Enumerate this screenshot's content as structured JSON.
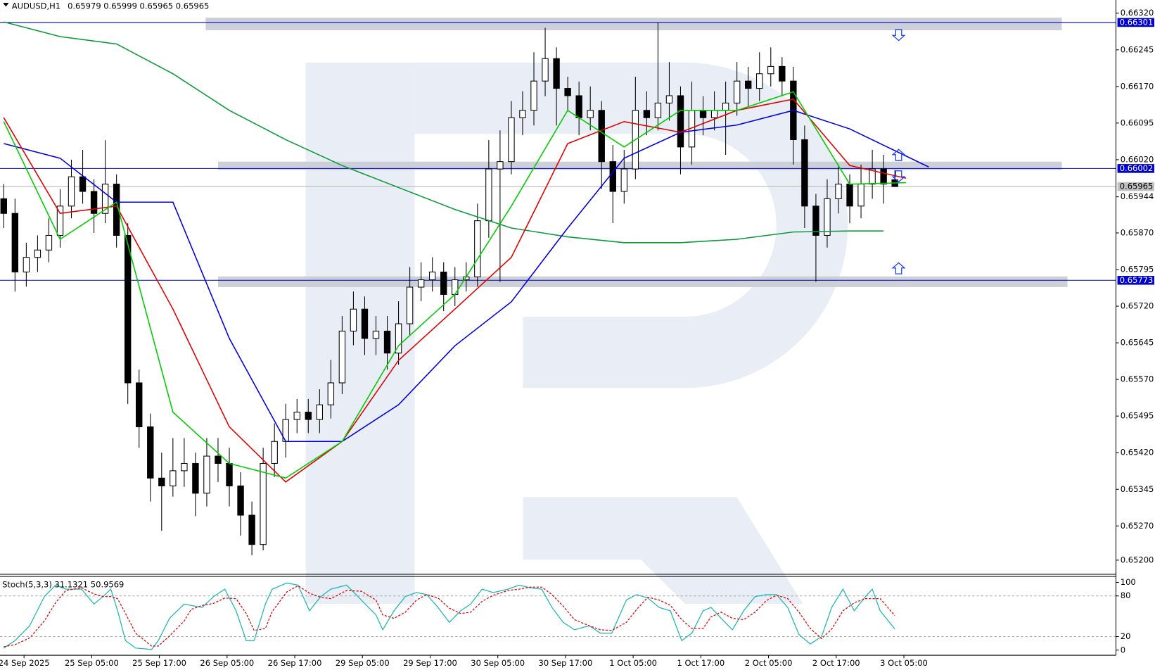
{
  "chart_data": {
    "type": "candlestick",
    "symbol": "AUDUSD,H1",
    "xlim": [
      -0.33,
      98.6
    ],
    "ylim": [
      0.65171,
      0.66347
    ],
    "yticks": [
      {
        "value": 0.6632,
        "label": "0.66320"
      },
      0.66245,
      {
        "value": 0.6617,
        "label": "0.66170"
      },
      0.66095,
      {
        "value": 0.6602,
        "label": "0.66020"
      },
      0.65944,
      {
        "value": 0.6587,
        "label": "0.65870"
      },
      0.65795,
      {
        "value": 0.6572,
        "label": "0.65720"
      },
      0.65645,
      {
        "value": 0.6557,
        "label": "0.65570"
      },
      0.65495,
      {
        "value": 0.6542,
        "label": "0.65420"
      },
      0.65345,
      {
        "value": 0.6527,
        "label": "0.65270"
      },
      {
        "value": 0.652,
        "label": "0.65200"
      }
    ],
    "xticks": [
      {
        "value": 1.8,
        "label": "24 Sep 2025"
      },
      {
        "value": 7.8,
        "label": "25 Sep 05:00"
      },
      {
        "value": 13.8,
        "label": "25 Sep 17:00"
      },
      {
        "value": 19.8,
        "label": "26 Sep 05:00"
      },
      {
        "value": 25.8,
        "label": "26 Sep 17:00"
      },
      {
        "value": 31.8,
        "label": "29 Sep 05:00"
      },
      {
        "value": 37.8,
        "label": "29 Sep 17:00"
      },
      {
        "value": 43.8,
        "label": "30 Sep 05:00"
      },
      {
        "value": 49.8,
        "label": "30 Sep 17:00"
      },
      {
        "value": 55.8,
        "label": "1 Oct 05:00"
      },
      {
        "value": 61.8,
        "label": "1 Oct 17:00"
      },
      {
        "value": 67.8,
        "label": "2 Oct 05:00"
      },
      {
        "value": 73.8,
        "label": "2 Oct 17:00"
      },
      {
        "value": 79.8,
        "label": "3 Oct 05:00"
      }
    ],
    "candles": [
      [
        0.6594,
        0.6597,
        0.6588,
        0.6591
      ],
      [
        0.6591,
        0.6594,
        0.6575,
        0.6579
      ],
      [
        0.6579,
        0.6585,
        0.6576,
        0.6582
      ],
      [
        0.6582,
        0.65865,
        0.6579,
        0.65835
      ],
      [
        0.65835,
        0.659,
        0.6581,
        0.65865
      ],
      [
        0.65865,
        0.6596,
        0.6584,
        0.65925
      ],
      [
        0.65925,
        0.6602,
        0.659,
        0.65985
      ],
      [
        0.65985,
        0.6604,
        0.6593,
        0.65955
      ],
      [
        0.65955,
        0.6598,
        0.6587,
        0.6591
      ],
      [
        0.6591,
        0.6606,
        0.6589,
        0.6597
      ],
      [
        0.6597,
        0.6599,
        0.6584,
        0.65865
      ],
      [
        0.65865,
        0.6589,
        0.6552,
        0.65563
      ],
      [
        0.65563,
        0.6559,
        0.6543,
        0.65473
      ],
      [
        0.65473,
        0.655,
        0.6532,
        0.65368
      ],
      [
        0.65368,
        0.6542,
        0.6526,
        0.65352
      ],
      [
        0.65352,
        0.6545,
        0.6533,
        0.65383
      ],
      [
        0.65383,
        0.6545,
        0.6535,
        0.65398
      ],
      [
        0.65398,
        0.6542,
        0.6529,
        0.65337
      ],
      [
        0.65337,
        0.6545,
        0.6531,
        0.65413
      ],
      [
        0.65413,
        0.6545,
        0.6536,
        0.65398
      ],
      [
        0.65398,
        0.6543,
        0.6531,
        0.65352
      ],
      [
        0.65352,
        0.6538,
        0.6525,
        0.65292
      ],
      [
        0.65292,
        0.6532,
        0.6521,
        0.65232
      ],
      [
        0.65232,
        0.6543,
        0.6522,
        0.65398
      ],
      [
        0.65398,
        0.6548,
        0.6537,
        0.65443
      ],
      [
        0.65443,
        0.6552,
        0.6541,
        0.65488
      ],
      [
        0.65488,
        0.6553,
        0.6546,
        0.65503
      ],
      [
        0.65503,
        0.6553,
        0.6546,
        0.65488
      ],
      [
        0.65488,
        0.6555,
        0.6546,
        0.65518
      ],
      [
        0.65518,
        0.6561,
        0.6549,
        0.65563
      ],
      [
        0.65563,
        0.657,
        0.6554,
        0.65669
      ],
      [
        0.65669,
        0.6575,
        0.6564,
        0.65714
      ],
      [
        0.65714,
        0.6574,
        0.6562,
        0.65654
      ],
      [
        0.65654,
        0.657,
        0.6562,
        0.65669
      ],
      [
        0.65669,
        0.657,
        0.6559,
        0.65624
      ],
      [
        0.65624,
        0.6573,
        0.656,
        0.65684
      ],
      [
        0.65684,
        0.658,
        0.6566,
        0.65759
      ],
      [
        0.65759,
        0.6581,
        0.6573,
        0.65774
      ],
      [
        0.65774,
        0.6582,
        0.6575,
        0.6579
      ],
      [
        0.6579,
        0.6581,
        0.6571,
        0.65744
      ],
      [
        0.65744,
        0.658,
        0.6572,
        0.65774
      ],
      [
        0.65774,
        0.6581,
        0.6575,
        0.6578
      ],
      [
        0.6578,
        0.6593,
        0.6576,
        0.65895
      ],
      [
        0.65895,
        0.6606,
        0.6586,
        0.66001
      ],
      [
        0.66001,
        0.6608,
        0.6577,
        0.66016
      ],
      [
        0.66016,
        0.6614,
        0.6599,
        0.66106
      ],
      [
        0.66106,
        0.6616,
        0.6607,
        0.66121
      ],
      [
        0.66121,
        0.6624,
        0.6609,
        0.66181
      ],
      [
        0.66181,
        0.6629,
        0.6615,
        0.66227
      ],
      [
        0.66227,
        0.6625,
        0.6609,
        0.66166
      ],
      [
        0.66166,
        0.6619,
        0.6612,
        0.66151
      ],
      [
        0.66151,
        0.6618,
        0.6607,
        0.66106
      ],
      [
        0.66106,
        0.6617,
        0.6608,
        0.66121
      ],
      [
        0.66121,
        0.6614,
        0.6596,
        0.66016
      ],
      [
        0.66016,
        0.6605,
        0.6589,
        0.65955
      ],
      [
        0.65955,
        0.6604,
        0.6593,
        0.66001
      ],
      [
        0.66001,
        0.6619,
        0.6598,
        0.66121
      ],
      [
        0.66121,
        0.6616,
        0.6607,
        0.66106
      ],
      [
        0.66106,
        0.663,
        0.6608,
        0.66136
      ],
      [
        0.66136,
        0.6622,
        0.661,
        0.66151
      ],
      [
        0.66151,
        0.6617,
        0.6599,
        0.66046
      ],
      [
        0.66046,
        0.6618,
        0.6601,
        0.66121
      ],
      [
        0.66121,
        0.6615,
        0.6607,
        0.66106
      ],
      [
        0.66106,
        0.6616,
        0.6608,
        0.66121
      ],
      [
        0.66121,
        0.6618,
        0.6603,
        0.66136
      ],
      [
        0.66136,
        0.6622,
        0.6611,
        0.66181
      ],
      [
        0.66181,
        0.6621,
        0.6613,
        0.66166
      ],
      [
        0.66166,
        0.6624,
        0.6614,
        0.66196
      ],
      [
        0.66196,
        0.6625,
        0.6617,
        0.66211
      ],
      [
        0.66211,
        0.6623,
        0.6615,
        0.66181
      ],
      [
        0.66181,
        0.6621,
        0.6601,
        0.66061
      ],
      [
        0.66061,
        0.6609,
        0.6588,
        0.65925
      ],
      [
        0.65925,
        0.6595,
        0.6577,
        0.65865
      ],
      [
        0.65865,
        0.6598,
        0.6584,
        0.6594
      ],
      [
        0.6594,
        0.6601,
        0.6591,
        0.6597
      ],
      [
        0.6597,
        0.6599,
        0.6589,
        0.65925
      ],
      [
        0.65925,
        0.6601,
        0.659,
        0.6597
      ],
      [
        0.6597,
        0.6604,
        0.6594,
        0.66001
      ],
      [
        0.66001,
        0.6603,
        0.6593,
        0.6597
      ],
      [
        0.65979,
        0.65999,
        0.65965,
        0.65965
      ]
    ],
    "up_color": "#ffffff",
    "down_color": "#000000",
    "indicators": [
      {
        "color": "#0a9a3a",
        "x": [
          0,
          5,
          10,
          15,
          20,
          25,
          30,
          35,
          40,
          45,
          50,
          55,
          60,
          65,
          70,
          75,
          78
        ],
        "values": [
          0.66302,
          0.66272,
          0.66257,
          0.66196,
          0.66121,
          0.66061,
          0.66008,
          0.65963,
          0.65918,
          0.6588,
          0.65862,
          0.6585,
          0.6585,
          0.65857,
          0.65872,
          0.65874,
          0.65874
        ]
      },
      {
        "color": "#0000dd",
        "x": [
          0,
          5,
          10,
          15,
          20,
          25,
          30,
          35,
          40,
          45,
          50,
          55,
          60,
          65,
          70,
          75,
          82
        ],
        "values": [
          0.66053,
          0.66023,
          0.65933,
          0.65933,
          0.65654,
          0.65443,
          0.65443,
          0.65518,
          0.65639,
          0.65729,
          0.6588,
          0.66023,
          0.66076,
          0.66091,
          0.66121,
          0.66083,
          0.66005
        ]
      },
      {
        "color": "#e00000",
        "x": [
          0,
          5,
          10,
          15,
          20,
          25,
          30,
          35,
          40,
          45,
          50,
          55,
          60,
          65,
          70,
          75,
          80
        ],
        "values": [
          0.66106,
          0.6591,
          0.65925,
          0.65714,
          0.65473,
          0.6536,
          0.65443,
          0.65609,
          0.65714,
          0.6582,
          0.66053,
          0.66098,
          0.66076,
          0.66121,
          0.66144,
          0.66008,
          0.65982
        ]
      },
      {
        "color": "#00cc00",
        "x": [
          0,
          5,
          10,
          15,
          20,
          25,
          30,
          35,
          40,
          45,
          50,
          55,
          60,
          65,
          70,
          75,
          80
        ],
        "values": [
          0.66098,
          0.65857,
          0.65933,
          0.65503,
          0.65398,
          0.65368,
          0.65443,
          0.65639,
          0.65744,
          0.65925,
          0.66121,
          0.66046,
          0.66121,
          0.66121,
          0.66159,
          0.6597,
          0.65973
        ]
      }
    ],
    "zones": [
      {
        "x": [
          17.9,
          93.8
        ],
        "y": [
          0.66311,
          0.66285
        ]
      },
      {
        "x": [
          19.0,
          93.8
        ],
        "y": [
          0.66016,
          0.65999
        ]
      },
      {
        "x": [
          19.0,
          94.3
        ],
        "y": [
          0.65781,
          0.65759
        ]
      }
    ],
    "zone_color": "#c9cbd3",
    "levels": [
      0.66301,
      0.66002,
      0.65773
    ],
    "level_color": "#0000cc",
    "current_price": 0.65965,
    "stoch": {
      "title": "Stoch(5,3,3)",
      "ylim": [
        -7.6,
        108.7
      ],
      "yticks": [
        100,
        80,
        20,
        0
      ],
      "dashed": [
        80,
        20
      ],
      "x": [
        0.0,
        1.0,
        2.3,
        3.6,
        4.6,
        5.5,
        6.9,
        8.0,
        8.8,
        9.5,
        10.1,
        10.8,
        11.7,
        13.1,
        13.7,
        14.7,
        16.0,
        16.6,
        17.6,
        18.6,
        19.6,
        20.6,
        21.5,
        22.2,
        23.2,
        23.8,
        25.1,
        26.1,
        27.1,
        28.1,
        29.0,
        30.4,
        31.7,
        33.0,
        33.6,
        34.6,
        35.6,
        36.6,
        37.5,
        38.5,
        39.5,
        40.5,
        41.4,
        42.4,
        43.4,
        44.7,
        45.7,
        46.7,
        47.7,
        48.6,
        49.6,
        50.6,
        51.9,
        52.9,
        53.9,
        55.2,
        56.1,
        57.1,
        58.1,
        59.1,
        60.1,
        61.0,
        62.0,
        62.7,
        63.6,
        64.6,
        65.6,
        66.6,
        67.6,
        68.5,
        69.5,
        70.5,
        71.5,
        72.5,
        73.4,
        74.4,
        75.4,
        76.4,
        77.0,
        77.7,
        79.0
      ],
      "series": [
        {
          "color": "#1fb5b5",
          "values": [
            3,
            14,
            36,
            79,
            96,
            90,
            90,
            68,
            79,
            90,
            58,
            14,
            3,
            1,
            14,
            47,
            68,
            66,
            63,
            79,
            90,
            58,
            14,
            14,
            68,
            90,
            99,
            96,
            58,
            79,
            90,
            96,
            74,
            52,
            30,
            58,
            79,
            85,
            82,
            63,
            41,
            58,
            68,
            90,
            85,
            90,
            96,
            92,
            90,
            63,
            41,
            30,
            36,
            25,
            25,
            74,
            82,
            77,
            63,
            58,
            14,
            25,
            58,
            63,
            47,
            30,
            58,
            79,
            82,
            82,
            63,
            23,
            9,
            20,
            63,
            90,
            58,
            79,
            90,
            58,
            31.1321
          ]
        },
        {
          "color": "#e00000",
          "dashed": true,
          "values": [
            5,
            8,
            18,
            43,
            70,
            88,
            92,
            83,
            79,
            79,
            76,
            54,
            25,
            6,
            6,
            21,
            43,
            60,
            66,
            69,
            77,
            76,
            54,
            29,
            32,
            57,
            86,
            95,
            84,
            78,
            76,
            88,
            87,
            74,
            52,
            47,
            56,
            74,
            82,
            77,
            62,
            54,
            56,
            72,
            81,
            88,
            90,
            93,
            93,
            82,
            65,
            45,
            36,
            30,
            29,
            41,
            60,
            78,
            74,
            66,
            45,
            32,
            32,
            49,
            56,
            47,
            45,
            56,
            73,
            81,
            76,
            56,
            32,
            17,
            31,
            58,
            70,
            76,
            76,
            76,
            50.9569
          ]
        }
      ]
    }
  }
}
